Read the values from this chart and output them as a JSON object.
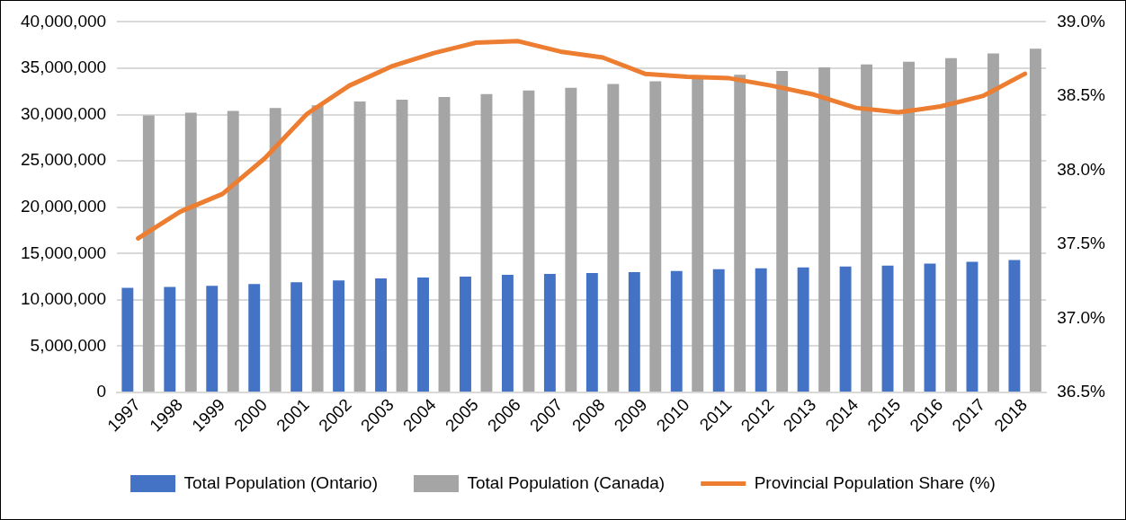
{
  "chart_data": {
    "type": "bar",
    "categories": [
      "1997",
      "1998",
      "1999",
      "2000",
      "2001",
      "2002",
      "2003",
      "2004",
      "2005",
      "2006",
      "2007",
      "2008",
      "2009",
      "2010",
      "2011",
      "2012",
      "2013",
      "2014",
      "2015",
      "2016",
      "2017",
      "2018"
    ],
    "series": [
      {
        "name": "Total Population (Ontario)",
        "color": "#4472c4",
        "values": [
          11300000,
          11400000,
          11500000,
          11700000,
          11900000,
          12100000,
          12300000,
          12400000,
          12500000,
          12700000,
          12800000,
          12900000,
          13000000,
          13100000,
          13300000,
          13400000,
          13500000,
          13600000,
          13700000,
          13900000,
          14100000,
          14300000
        ]
      },
      {
        "name": "Total Population (Canada)",
        "color": "#a5a5a5",
        "values": [
          29900000,
          30200000,
          30400000,
          30700000,
          31000000,
          31400000,
          31600000,
          31900000,
          32200000,
          32600000,
          32900000,
          33300000,
          33600000,
          34000000,
          34300000,
          34700000,
          35100000,
          35400000,
          35700000,
          36100000,
          36600000,
          37100000
        ]
      },
      {
        "name": "Provincial Population Share (%)",
        "type": "line",
        "axis": "y2",
        "color": "#ed7d31",
        "values": [
          37.54,
          37.72,
          37.84,
          38.08,
          38.38,
          38.57,
          38.7,
          38.79,
          38.86,
          38.87,
          38.8,
          38.76,
          38.65,
          38.63,
          38.62,
          38.57,
          38.51,
          38.42,
          38.39,
          38.43,
          38.5,
          38.65
        ]
      }
    ],
    "ylim": [
      0,
      40000000
    ],
    "yticks": [
      {
        "value": 0,
        "label": "0"
      },
      {
        "value": 5000000,
        "label": "5,000,000"
      },
      {
        "value": 10000000,
        "label": "10,000,000"
      },
      {
        "value": 15000000,
        "label": "15,000,000"
      },
      {
        "value": 20000000,
        "label": "20,000,000"
      },
      {
        "value": 25000000,
        "label": "25,000,000"
      },
      {
        "value": 30000000,
        "label": "30,000,000"
      },
      {
        "value": 35000000,
        "label": "35,000,000"
      },
      {
        "value": 40000000,
        "label": "40,000,000"
      }
    ],
    "y2lim": [
      36.5,
      39
    ],
    "y2ticks": [
      {
        "value": 36.5,
        "label": "36.5%"
      },
      {
        "value": 37,
        "label": "37.0%"
      },
      {
        "value": 37.5,
        "label": "37.5%"
      },
      {
        "value": 38,
        "label": "38.0%"
      },
      {
        "value": 38.5,
        "label": "38.5%"
      },
      {
        "value": 39,
        "label": "39.0%"
      }
    ],
    "grid": "y",
    "legend": "bottom",
    "marker": "none",
    "line_style": "solid"
  }
}
